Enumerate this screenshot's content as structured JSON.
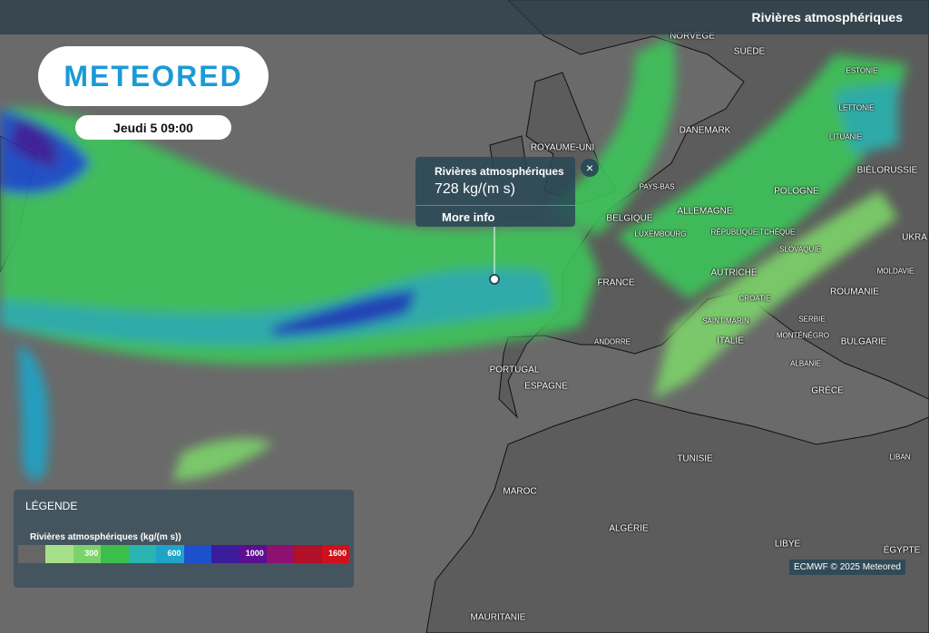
{
  "header": {
    "layer_title": "Rivières atmosphériques"
  },
  "logo": "METEORED",
  "date": "Jeudi 5 09:00",
  "popup": {
    "title": "Rivières atmosphériques",
    "value": "728 kg/(m s)",
    "link": "More info"
  },
  "labels": [
    "NORVÈGE",
    "SUÈDE",
    "ESTONIE",
    "LETTONIE",
    "LITUANIE",
    "ROYAUME-UNI",
    "DANEMARK",
    "BIÉLORUSSIE",
    "PAYS-BAS",
    "POLOGNE",
    "BELGIQUE",
    "ALLEMAGNE",
    "LUXEMBOURG",
    "RÉPUBLIQUE TCHÈQUE",
    "UKRA",
    "SLOVAQUIE",
    "MOLDAVIE",
    "AUTRICHE",
    "FRANCE",
    "ROUMANIE",
    "CROATIE",
    "SERBIE",
    "SAINT-MARIN",
    "MONTÉNÉGRO",
    "ANDORRE",
    "ITALIE",
    "BULGARIE",
    "ALBANIE",
    "PORTUGAL",
    "ESPAGNE",
    "GRÈCE",
    "TUNISIE",
    "LIBAN",
    "MAROC",
    "ALGÉRIE",
    "LIBYE",
    "ÉGYPTE",
    "MAURITANIE"
  ],
  "legend": {
    "title": "LÉGENDE",
    "subtitle": "Rivières atmosphériques (kg/(m s))",
    "colors": [
      "#666666",
      "#a6e08a",
      "#7dd36b",
      "#3cbf4a",
      "#2ab3b0",
      "#1fa4c8",
      "#1d4fcf",
      "#3a1c9c",
      "#5a1090",
      "#8e1070",
      "#b01028",
      "#d0101a"
    ],
    "ticks": [
      300,
      600,
      1000,
      1600
    ]
  },
  "attribution": "ECMWF © 2025 Meteored"
}
